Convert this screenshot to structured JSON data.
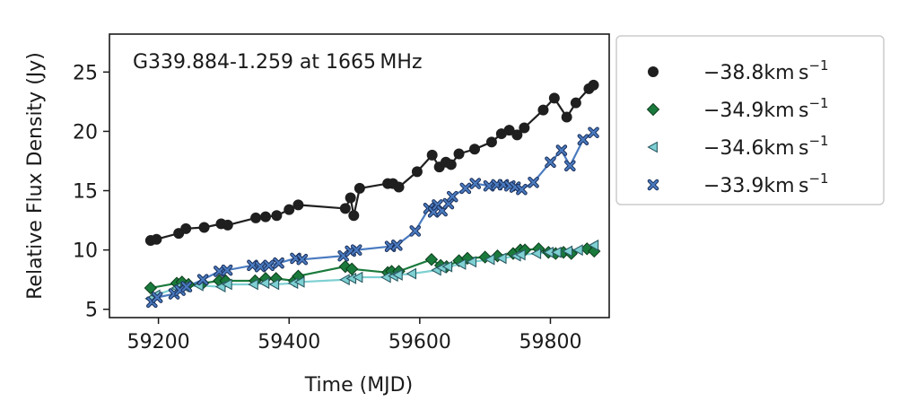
{
  "chart_data": {
    "type": "line",
    "title": "",
    "annotation": "G339.884-1.259 at 1665 MHz",
    "xlabel": "Time (MJD)",
    "ylabel": "Relative Flux Density (Jy)",
    "xlim": [
      59125,
      59890
    ],
    "ylim": [
      4.3,
      28.2
    ],
    "xticks": [
      59200,
      59400,
      59600,
      59800
    ],
    "yticks": [
      5,
      10,
      15,
      20,
      25
    ],
    "grid": false,
    "legend_position": "outside-right",
    "series": [
      {
        "name": "−38.8km s",
        "superscript": "−1",
        "marker": "circle",
        "color": "#1f1f1f",
        "edge": "#1f1f1f",
        "x": [
          59188,
          59197,
          59231,
          59242,
          59270,
          59296,
          59306,
          59349,
          59364,
          59381,
          59400,
          59414,
          59486,
          59494,
          59499,
          59508,
          59551,
          59559,
          59568,
          59596,
          59619,
          59630,
          59640,
          59648,
          59660,
          59684,
          59710,
          59725,
          59737,
          59749,
          59760,
          59789,
          59806,
          59825,
          59839,
          59859,
          59866
        ],
        "y": [
          10.8,
          10.9,
          11.4,
          11.8,
          11.9,
          12.2,
          12.1,
          12.7,
          12.8,
          12.9,
          13.4,
          13.8,
          13.5,
          14.4,
          12.9,
          15.2,
          15.6,
          15.6,
          15.3,
          16.6,
          18.0,
          17.0,
          17.4,
          17.2,
          18.1,
          18.5,
          19.1,
          19.8,
          20.1,
          19.7,
          20.3,
          21.8,
          22.8,
          21.2,
          22.4,
          23.6,
          23.9
        ]
      },
      {
        "name": "−34.9km s",
        "superscript": "−1",
        "marker": "diamond",
        "color": "#1a7a3c",
        "edge": "#0d3d1d",
        "x": [
          59188,
          59228,
          59236,
          59246,
          59268,
          59293,
          59303,
          59348,
          59364,
          59380,
          59408,
          59414,
          59486,
          59496,
          59551,
          59557,
          59568,
          59618,
          59632,
          59641,
          59660,
          59673,
          59700,
          59719,
          59743,
          59754,
          59761,
          59782,
          59797,
          59808,
          59820,
          59832,
          59856,
          59867
        ],
        "y": [
          6.8,
          7.2,
          7.3,
          7.1,
          7.2,
          7.4,
          7.4,
          7.4,
          7.6,
          7.6,
          7.4,
          7.8,
          8.6,
          8.4,
          8.1,
          8.2,
          8.2,
          9.2,
          8.7,
          8.6,
          9.1,
          9.3,
          9.4,
          9.5,
          9.7,
          10.0,
          10.0,
          10.1,
          9.8,
          9.7,
          9.8,
          9.7,
          10.1,
          9.9
        ]
      },
      {
        "name": "−34.6km s",
        "superscript": "−1",
        "marker": "triangle-left",
        "color": "#7ed0d2",
        "edge": "#2a5a63",
        "x": [
          59188,
          59196,
          59228,
          59240,
          59262,
          59296,
          59306,
          59346,
          59363,
          59378,
          59407,
          59417,
          59486,
          59496,
          59506,
          59549,
          59560,
          59567,
          59588,
          59626,
          59634,
          59643,
          59664,
          59680,
          59708,
          59726,
          59748,
          59755,
          59779,
          59798,
          59810,
          59827,
          59843,
          59867
        ],
        "y": [
          5.9,
          6.2,
          6.8,
          6.9,
          7.0,
          6.9,
          7.1,
          7.1,
          7.2,
          7.1,
          7.2,
          7.3,
          7.5,
          7.6,
          7.7,
          7.7,
          7.8,
          7.9,
          8.0,
          8.3,
          8.5,
          8.6,
          8.8,
          9.0,
          9.2,
          9.3,
          9.5,
          9.6,
          9.7,
          9.8,
          9.8,
          9.9,
          10.0,
          10.4
        ]
      },
      {
        "name": "−33.9km s",
        "superscript": "−1",
        "marker": "x",
        "color": "#4a7bc0",
        "edge": "#1a2f5a",
        "x": [
          59190,
          59198,
          59224,
          59233,
          59243,
          59268,
          59293,
          59305,
          59344,
          59356,
          59369,
          59384,
          59410,
          59420,
          59483,
          59494,
          59503,
          59555,
          59565,
          59593,
          59614,
          59621,
          59627,
          59634,
          59644,
          59650,
          59670,
          59685,
          59706,
          59718,
          59728,
          59738,
          59746,
          59756,
          59774,
          59800,
          59817,
          59830,
          59850,
          59866
        ],
        "y": [
          5.6,
          6.0,
          6.3,
          6.6,
          6.9,
          7.5,
          8.2,
          8.3,
          8.7,
          8.6,
          8.7,
          8.9,
          9.3,
          9.2,
          9.5,
          9.9,
          10.0,
          10.3,
          10.4,
          11.6,
          13.5,
          13.2,
          13.8,
          13.3,
          13.9,
          14.5,
          15.2,
          15.6,
          15.4,
          15.5,
          15.5,
          15.4,
          15.3,
          15.1,
          15.7,
          17.4,
          18.4,
          17.1,
          19.3,
          19.9
        ]
      }
    ]
  }
}
